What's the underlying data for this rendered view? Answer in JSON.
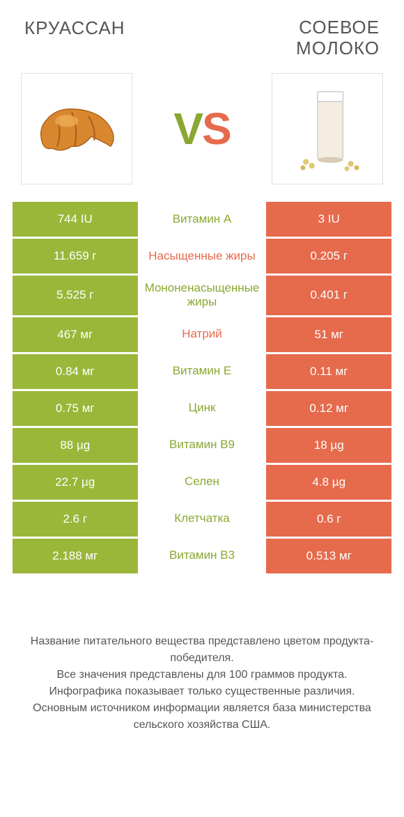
{
  "titles": {
    "left": "КРУАССАН",
    "right_line1": "СОЕВОЕ",
    "right_line2": "МОЛОКО"
  },
  "vs": {
    "v": "V",
    "s": "S"
  },
  "colors": {
    "green": "#9ab73a",
    "orange": "#e66a4c",
    "green_text": "#8aa831",
    "orange_text": "#e66a4c"
  },
  "rows": [
    {
      "left": "744 IU",
      "mid": "Витамин A",
      "mid_color": "green",
      "right": "3 IU"
    },
    {
      "left": "11.659 г",
      "mid": "Насыщенные жиры",
      "mid_color": "orange",
      "right": "0.205 г"
    },
    {
      "left": "5.525 г",
      "mid": "Мононенасыщенные жиры",
      "mid_color": "green",
      "right": "0.401 г"
    },
    {
      "left": "467 мг",
      "mid": "Натрий",
      "mid_color": "orange",
      "right": "51 мг"
    },
    {
      "left": "0.84 мг",
      "mid": "Витамин E",
      "mid_color": "green",
      "right": "0.11 мг"
    },
    {
      "left": "0.75 мг",
      "mid": "Цинк",
      "mid_color": "green",
      "right": "0.12 мг"
    },
    {
      "left": "88 µg",
      "mid": "Витамин B9",
      "mid_color": "green",
      "right": "18 µg"
    },
    {
      "left": "22.7 µg",
      "mid": "Селен",
      "mid_color": "green",
      "right": "4.8 µg"
    },
    {
      "left": "2.6 г",
      "mid": "Клетчатка",
      "mid_color": "green",
      "right": "0.6 г"
    },
    {
      "left": "2.188 мг",
      "mid": "Витамин B3",
      "mid_color": "green",
      "right": "0.513 мг"
    }
  ],
  "footer": {
    "l1": "Название питательного вещества представлено цветом продукта-победителя.",
    "l2": "Все значения представлены для 100 граммов продукта.",
    "l3": "Инфографика показывает только существенные различия.",
    "l4": "Основным источником информации является база министерства сельского хозяйства США."
  }
}
